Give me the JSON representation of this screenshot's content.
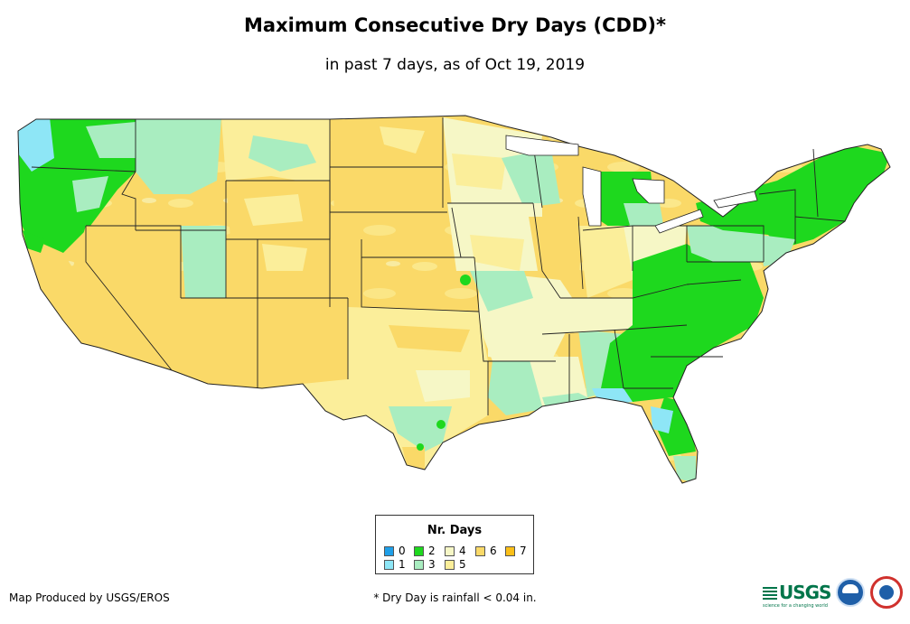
{
  "title": "Maximum Consecutive Dry Days (CDD)*",
  "subtitle": "in past 7 days, as of Oct 19, 2019",
  "legend": {
    "title": "Nr. Days",
    "items": [
      {
        "label": "0",
        "color": "#1f9fe8"
      },
      {
        "label": "1",
        "color": "#8ee6f6"
      },
      {
        "label": "2",
        "color": "#1ed81e"
      },
      {
        "label": "3",
        "color": "#a9edc0"
      },
      {
        "label": "4",
        "color": "#f6f7c6"
      },
      {
        "label": "5",
        "color": "#fbee9a"
      },
      {
        "label": "6",
        "color": "#fad968"
      },
      {
        "label": "7",
        "color": "#fbbf18"
      }
    ]
  },
  "footer": {
    "credit": "Map Produced by USGS/EROS",
    "footnote": "* Dry Day is rainfall < 0.04 in.",
    "usgs_logo": "USGS",
    "usgs_tagline": "science for a changing world",
    "noaa_logo": "noaa-logo",
    "nws_logo": "nws-logo"
  }
}
